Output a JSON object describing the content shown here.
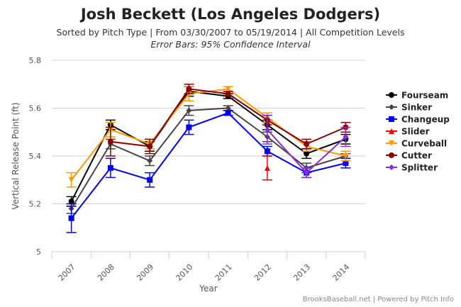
{
  "header": {
    "title": "Josh Beckett (Los Angeles Dodgers)",
    "subtitle": "Sorted by Pitch Type | From 03/30/2007 to 05/19/2014 | All Competition Levels",
    "subtitle2": "Error Bars: 95% Confidence Interval"
  },
  "credit": "BrooksBaseball.net | Powered by Pitch Info",
  "chart_data": {
    "type": "line",
    "title": "Josh Beckett (Los Angeles Dodgers)",
    "xlabel": "Year",
    "ylabel": "Vertical Release Point (ft)",
    "categories": [
      "2007",
      "2008",
      "2009",
      "2010",
      "2011",
      "2012",
      "2013",
      "2014"
    ],
    "ylim": [
      5,
      5.8
    ],
    "yticks": [
      "5",
      "5.2",
      "5.4",
      "5.6",
      "5.8"
    ],
    "grid": true,
    "legend_position": "right",
    "error_bars": "95% Confidence Interval",
    "series": [
      {
        "name": "Fourseam",
        "color": "#000000",
        "marker": "circle",
        "values": [
          5.21,
          5.53,
          5.44,
          5.67,
          5.65,
          5.53,
          5.41,
          5.47
        ],
        "err": [
          0.02,
          0.02,
          0.02,
          0.02,
          0.01,
          0.02,
          0.02,
          0.02
        ]
      },
      {
        "name": "Sinker",
        "color": "#444444",
        "marker": "diamond",
        "values": [
          5.18,
          5.45,
          5.38,
          5.59,
          5.6,
          5.48,
          5.35,
          5.4
        ],
        "err": [
          0.02,
          0.02,
          0.02,
          0.02,
          0.01,
          0.02,
          0.02,
          0.01
        ]
      },
      {
        "name": "Changeup",
        "color": "#0000FF",
        "marker": "square",
        "values": [
          5.14,
          5.35,
          5.3,
          5.52,
          5.58,
          5.42,
          5.33,
          5.37
        ],
        "err": [
          0.06,
          0.04,
          0.03,
          0.03,
          0.01,
          0.02,
          0.02,
          0.02
        ]
      },
      {
        "name": "Slider",
        "color": "#FF0000",
        "marker": "triangle",
        "values": [
          null,
          null,
          null,
          null,
          null,
          5.35,
          null,
          null
        ],
        "err": [
          null,
          null,
          null,
          null,
          null,
          0.05,
          null,
          null
        ]
      },
      {
        "name": "Curveball",
        "color": "#FF9900",
        "marker": "triangle-down",
        "values": [
          5.3,
          5.51,
          5.45,
          5.66,
          5.68,
          5.56,
          5.44,
          5.4
        ],
        "err": [
          0.03,
          0.03,
          0.02,
          0.03,
          0.01,
          0.02,
          0.02,
          0.02
        ]
      },
      {
        "name": "Cutter",
        "color": "#8B0000",
        "marker": "circle",
        "values": [
          null,
          5.46,
          5.44,
          5.68,
          5.66,
          5.55,
          5.45,
          5.52
        ],
        "err": [
          null,
          0.06,
          0.03,
          0.02,
          0.01,
          0.02,
          0.02,
          0.02
        ]
      },
      {
        "name": "Splitter",
        "color": "#8A2BE2",
        "marker": "diamond",
        "values": [
          null,
          null,
          null,
          null,
          null,
          5.51,
          5.33,
          5.48
        ],
        "err": [
          null,
          null,
          null,
          null,
          null,
          0.06,
          0.02,
          0.04
        ]
      }
    ]
  }
}
